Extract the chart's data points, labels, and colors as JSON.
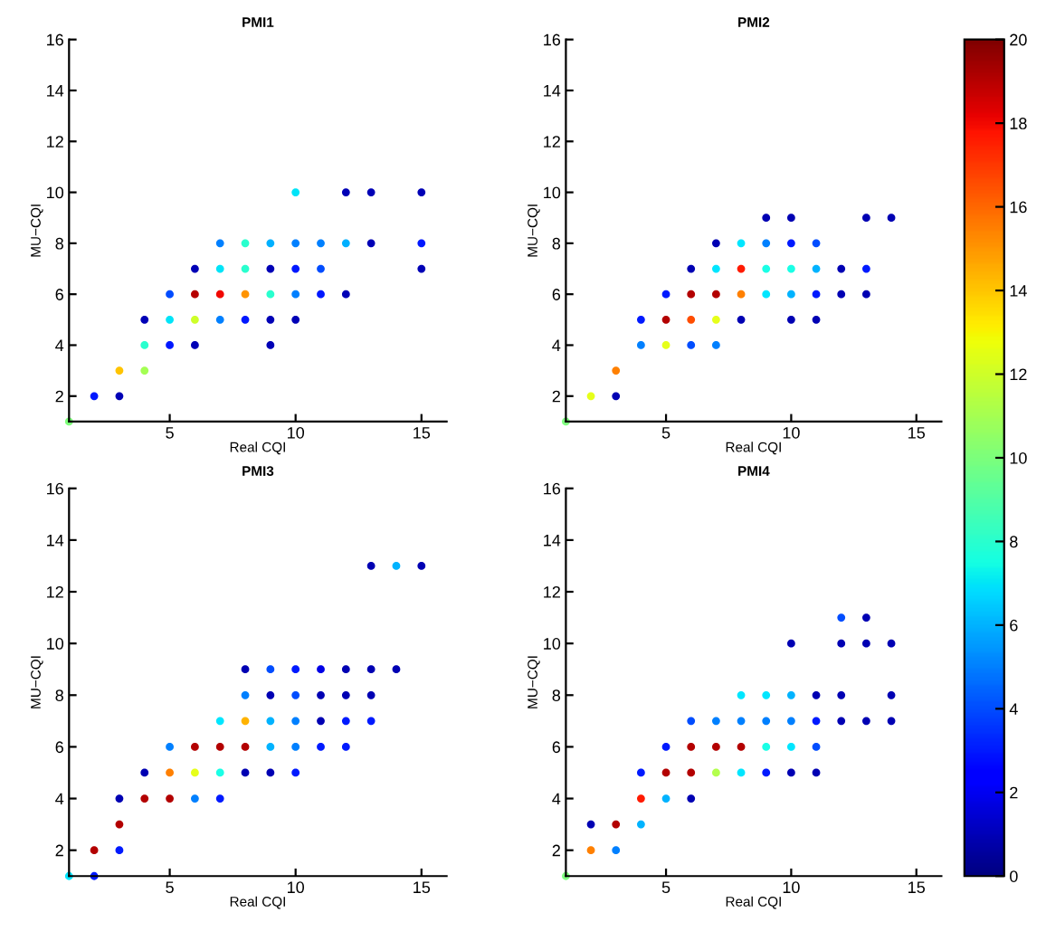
{
  "chart_data": [
    {
      "type": "scatter",
      "title": "PMI1",
      "xlabel": "Real CQI",
      "ylabel": "MU−CQI",
      "xlim": [
        1,
        16
      ],
      "ylim": [
        1,
        16
      ],
      "xticks": [
        5,
        10,
        15
      ],
      "yticks": [
        2,
        4,
        6,
        8,
        10,
        12,
        14,
        16
      ],
      "grid": false,
      "marker": "circle",
      "clim": [
        0,
        20
      ],
      "cticks": [
        0,
        2,
        4,
        6,
        8,
        10,
        12,
        14,
        16,
        18,
        20
      ],
      "x": [
        1,
        2,
        3,
        3,
        4,
        4,
        4,
        5,
        5,
        5,
        6,
        6,
        6,
        6,
        7,
        7,
        7,
        7,
        8,
        8,
        8,
        8,
        9,
        9,
        9,
        9,
        9,
        10,
        10,
        10,
        10,
        10,
        11,
        11,
        11,
        12,
        12,
        12,
        13,
        13,
        15,
        15,
        15
      ],
      "values": [
        1,
        2,
        2,
        3,
        3,
        4,
        5,
        4,
        5,
        6,
        4,
        5,
        6,
        7,
        5,
        6,
        7,
        8,
        5,
        6,
        7,
        8,
        4,
        5,
        6,
        7,
        8,
        5,
        6,
        7,
        8,
        10,
        6,
        7,
        8,
        6,
        8,
        10,
        8,
        10,
        7,
        8,
        10
      ],
      "cvalues": [
        10,
        3,
        1,
        14,
        11,
        8,
        1,
        3,
        7,
        4,
        1,
        12,
        19,
        1,
        5,
        18,
        7,
        5,
        3,
        15,
        8,
        8,
        1,
        1,
        8,
        1,
        6,
        1,
        5,
        3,
        5,
        7,
        3,
        4,
        5,
        1,
        6,
        1,
        1,
        1,
        1,
        3,
        1
      ]
    },
    {
      "type": "scatter",
      "title": "PMI2",
      "xlabel": "Real CQI",
      "ylabel": "MU−CQI",
      "xlim": [
        1,
        16
      ],
      "ylim": [
        1,
        16
      ],
      "xticks": [
        5,
        10,
        15
      ],
      "yticks": [
        2,
        4,
        6,
        8,
        10,
        12,
        14,
        16
      ],
      "grid": false,
      "marker": "circle",
      "x": [
        1,
        2,
        3,
        3,
        4,
        4,
        5,
        5,
        5,
        6,
        6,
        6,
        6,
        7,
        7,
        7,
        7,
        7,
        8,
        8,
        8,
        8,
        9,
        9,
        9,
        9,
        10,
        10,
        10,
        10,
        10,
        11,
        11,
        11,
        11,
        12,
        12,
        13,
        13,
        13,
        14
      ],
      "values": [
        1,
        2,
        2,
        3,
        4,
        5,
        4,
        5,
        6,
        4,
        5,
        6,
        7,
        4,
        5,
        6,
        7,
        8,
        5,
        6,
        7,
        8,
        6,
        7,
        8,
        9,
        5,
        6,
        7,
        8,
        9,
        5,
        6,
        7,
        8,
        6,
        7,
        6,
        7,
        9,
        9
      ],
      "colors": [
        "#80ff80",
        "#e6ff1a",
        "#0000b3",
        "#ff8000",
        "#0080ff",
        "#001aff",
        "#e6ff1a",
        "#b30000",
        "#001aff",
        "#004dff",
        "#ff4d00",
        "#b30000",
        "#0000b3",
        "#0080ff",
        "#e6ff1a",
        "#b30000",
        "#00e6ff",
        "#0000b3",
        "#0000b3",
        "#ff8000",
        "#ff1a00",
        "#00e6ff",
        "#00e6ff",
        "#1affe6",
        "#0080ff",
        "#0000b3",
        "#0000b3",
        "#00b3ff",
        "#1affe6",
        "#001aff",
        "#0000b3",
        "#0000b3",
        "#001aff",
        "#00b3ff",
        "#004dff",
        "#0000b3",
        "#0000b3",
        "#0000b3",
        "#001aff",
        "#0000b3",
        "#0000b3"
      ]
    },
    {
      "type": "scatter",
      "title": "PMI3",
      "xlabel": "Real CQI",
      "ylabel": "MU−CQI",
      "xlim": [
        1,
        16
      ],
      "ylim": [
        1,
        16
      ],
      "xticks": [
        5,
        10,
        15
      ],
      "yticks": [
        2,
        4,
        6,
        8,
        10,
        12,
        14,
        16
      ],
      "grid": false,
      "marker": "circle",
      "x": [
        1,
        2,
        2,
        3,
        3,
        3,
        4,
        4,
        5,
        5,
        5,
        6,
        6,
        6,
        7,
        7,
        7,
        7,
        8,
        8,
        8,
        8,
        8,
        9,
        9,
        9,
        9,
        9,
        10,
        10,
        10,
        10,
        10,
        11,
        11,
        11,
        11,
        12,
        12,
        12,
        12,
        13,
        13,
        13,
        13,
        14,
        14,
        15
      ],
      "values": [
        1,
        1,
        2,
        2,
        3,
        4,
        4,
        5,
        4,
        5,
        6,
        4,
        5,
        6,
        4,
        5,
        6,
        7,
        5,
        6,
        7,
        8,
        9,
        5,
        6,
        7,
        8,
        9,
        5,
        6,
        7,
        8,
        9,
        6,
        7,
        8,
        9,
        6,
        7,
        8,
        9,
        7,
        8,
        9,
        13,
        9,
        13,
        13
      ],
      "colors": [
        "#00e6ff",
        "#001aff",
        "#b30000",
        "#001aff",
        "#b30000",
        "#0000b3",
        "#b30000",
        "#0000b3",
        "#b30000",
        "#ff8000",
        "#0080ff",
        "#0080ff",
        "#e6ff1a",
        "#b30000",
        "#001aff",
        "#1affe6",
        "#b30000",
        "#00e6ff",
        "#0000b3",
        "#b30000",
        "#ffb300",
        "#0080ff",
        "#0000b3",
        "#0000b3",
        "#00b3ff",
        "#00b3ff",
        "#0000b3",
        "#004dff",
        "#001aff",
        "#0080ff",
        "#0080ff",
        "#004dff",
        "#001aff",
        "#001aff",
        "#0000b3",
        "#0000b3",
        "#0000e6",
        "#001aff",
        "#001aff",
        "#0000b3",
        "#0000b3",
        "#001aff",
        "#0000b3",
        "#0000b3",
        "#0000b3",
        "#0000b3",
        "#00b3ff",
        "#0000b3"
      ]
    },
    {
      "type": "scatter",
      "title": "PMI4",
      "xlabel": "Real CQI",
      "ylabel": "MU−CQI",
      "xlim": [
        1,
        16
      ],
      "ylim": [
        1,
        16
      ],
      "xticks": [
        5,
        10,
        15
      ],
      "yticks": [
        2,
        4,
        6,
        8,
        10,
        12,
        14,
        16
      ],
      "grid": false,
      "marker": "circle",
      "x": [
        1,
        2,
        2,
        3,
        3,
        4,
        4,
        4,
        5,
        5,
        5,
        6,
        6,
        6,
        6,
        7,
        7,
        7,
        8,
        8,
        8,
        8,
        9,
        9,
        9,
        9,
        10,
        10,
        10,
        10,
        10,
        11,
        11,
        11,
        11,
        12,
        12,
        12,
        12,
        13,
        13,
        13,
        14,
        14,
        14
      ],
      "values": [
        1,
        2,
        3,
        2,
        3,
        3,
        4,
        5,
        4,
        5,
        6,
        4,
        5,
        6,
        7,
        5,
        6,
        7,
        5,
        6,
        7,
        8,
        5,
        6,
        7,
        8,
        5,
        6,
        7,
        8,
        10,
        5,
        6,
        7,
        8,
        7,
        8,
        10,
        11,
        7,
        10,
        11,
        7,
        8,
        10
      ],
      "colors": [
        "#80ff80",
        "#ff8000",
        "#0000b3",
        "#0080ff",
        "#b30000",
        "#00b3ff",
        "#ff1a00",
        "#001aff",
        "#00b3ff",
        "#b30000",
        "#001aff",
        "#0000b3",
        "#b30000",
        "#b30000",
        "#004dff",
        "#b3ff4d",
        "#b30000",
        "#0080ff",
        "#00e6ff",
        "#b30000",
        "#0080ff",
        "#00e6ff",
        "#001aff",
        "#1affe6",
        "#0080ff",
        "#00e6ff",
        "#0000b3",
        "#00e6ff",
        "#0080ff",
        "#00b3ff",
        "#0000b3",
        "#0000b3",
        "#004dff",
        "#001aff",
        "#0000b3",
        "#0000b3",
        "#0000b3",
        "#0000b3",
        "#004dff",
        "#0000b3",
        "#0000b3",
        "#0000b3",
        "#0000b3",
        "#0000b3",
        "#0000b3"
      ]
    }
  ]
}
